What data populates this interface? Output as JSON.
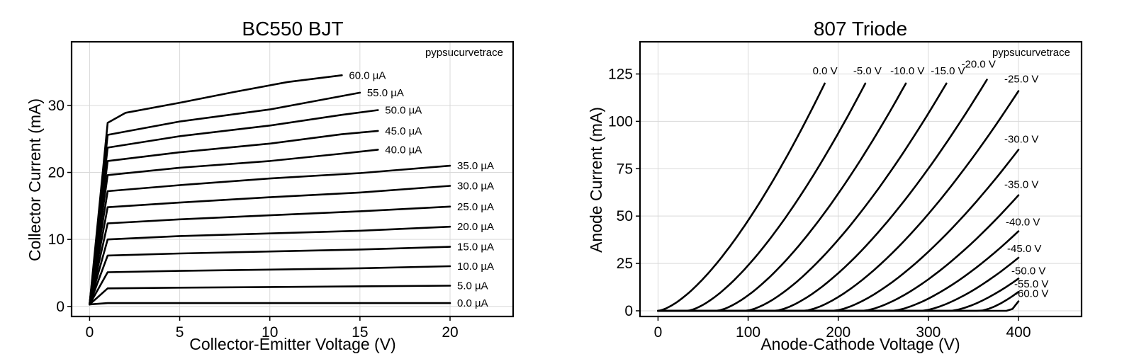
{
  "chart_data": [
    {
      "type": "line",
      "title": "BC550 BJT",
      "xlabel": "Collector-Emitter Voltage (V)",
      "ylabel": "Collector Current (mA)",
      "xlim": [
        -1,
        23.5
      ],
      "ylim": [
        -1.5,
        39.5
      ],
      "xticks": [
        0,
        5,
        10,
        15,
        20
      ],
      "yticks": [
        0,
        10,
        20,
        30
      ],
      "grid": true,
      "watermark": "pypsucurvetrace",
      "series": [
        {
          "name": "0.0 µA",
          "points": [
            [
              0,
              0.3
            ],
            [
              1,
              0.5
            ],
            [
              5,
              0.5
            ],
            [
              10,
              0.5
            ],
            [
              15,
              0.5
            ],
            [
              20,
              0.5
            ]
          ]
        },
        {
          "name": "5.0 µA",
          "points": [
            [
              0,
              0.3
            ],
            [
              1,
              2.7
            ],
            [
              5,
              2.8
            ],
            [
              10,
              2.9
            ],
            [
              15,
              3.0
            ],
            [
              20,
              3.1
            ]
          ]
        },
        {
          "name": "10.0 µA",
          "points": [
            [
              0,
              0.3
            ],
            [
              1,
              5.1
            ],
            [
              5,
              5.3
            ],
            [
              10,
              5.5
            ],
            [
              15,
              5.7
            ],
            [
              20,
              6.0
            ]
          ]
        },
        {
          "name": "15.0 µA",
          "points": [
            [
              0,
              0.3
            ],
            [
              1,
              7.6
            ],
            [
              5,
              7.9
            ],
            [
              10,
              8.2
            ],
            [
              15,
              8.5
            ],
            [
              20,
              8.9
            ]
          ]
        },
        {
          "name": "20.0 µA",
          "points": [
            [
              0,
              0.3
            ],
            [
              1,
              10.0
            ],
            [
              5,
              10.5
            ],
            [
              10,
              10.9
            ],
            [
              15,
              11.3
            ],
            [
              20,
              11.9
            ]
          ]
        },
        {
          "name": "25.0 µA",
          "points": [
            [
              0,
              0.3
            ],
            [
              1,
              12.4
            ],
            [
              5,
              13.0
            ],
            [
              10,
              13.6
            ],
            [
              15,
              14.2
            ],
            [
              20,
              14.9
            ]
          ]
        },
        {
          "name": "30.0 µA",
          "points": [
            [
              0,
              0.3
            ],
            [
              1,
              14.8
            ],
            [
              5,
              15.5
            ],
            [
              10,
              16.3
            ],
            [
              15,
              17.0
            ],
            [
              20,
              18.0
            ]
          ]
        },
        {
          "name": "35.0 µA",
          "points": [
            [
              0,
              0.3
            ],
            [
              1,
              17.2
            ],
            [
              5,
              18.1
            ],
            [
              10,
              19.1
            ],
            [
              15,
              19.9
            ],
            [
              20,
              21.0
            ]
          ]
        },
        {
          "name": "40.0 µA",
          "points": [
            [
              0,
              0.3
            ],
            [
              1,
              19.6
            ],
            [
              5,
              20.7
            ],
            [
              10,
              21.7
            ],
            [
              14,
              22.8
            ],
            [
              16,
              23.4
            ]
          ]
        },
        {
          "name": "45.0 µA",
          "points": [
            [
              0,
              0.3
            ],
            [
              1,
              21.7
            ],
            [
              5,
              23.0
            ],
            [
              10,
              24.3
            ],
            [
              14,
              25.7
            ],
            [
              16,
              26.2
            ]
          ]
        },
        {
          "name": "50.0 µA",
          "points": [
            [
              0,
              0.3
            ],
            [
              1,
              23.7
            ],
            [
              5,
              25.4
            ],
            [
              10,
              27.0
            ],
            [
              14,
              28.6
            ],
            [
              16,
              29.3
            ]
          ]
        },
        {
          "name": "55.0 µA",
          "points": [
            [
              0,
              0.3
            ],
            [
              1,
              25.6
            ],
            [
              5,
              27.6
            ],
            [
              10,
              29.4
            ],
            [
              13,
              30.9
            ],
            [
              15,
              31.9
            ]
          ]
        },
        {
          "name": "60.0 µA",
          "points": [
            [
              0,
              0.3
            ],
            [
              1,
              27.4
            ],
            [
              2,
              28.9
            ],
            [
              5,
              30.4
            ],
            [
              8,
              32.0
            ],
            [
              11,
              33.5
            ],
            [
              14,
              34.5
            ]
          ]
        }
      ]
    },
    {
      "type": "line",
      "title": "807 Triode",
      "xlabel": "Anode-Cathode Voltage (V)",
      "ylabel": "Anode Current (mA)",
      "xlim": [
        -20,
        470
      ],
      "ylim": [
        -3,
        142
      ],
      "xticks": [
        0,
        100,
        200,
        300,
        400
      ],
      "yticks": [
        0,
        25,
        50,
        75,
        100,
        125
      ],
      "grid": true,
      "watermark": "pypsucurvetrace",
      "series": [
        {
          "name": "0.0 V",
          "grid_voltage": 0,
          "endpoint": [
            185,
            120
          ]
        },
        {
          "name": "-5.0 V",
          "grid_voltage": -5,
          "endpoint": [
            230,
            120
          ]
        },
        {
          "name": "-10.0 V",
          "grid_voltage": -10,
          "endpoint": [
            275,
            120
          ]
        },
        {
          "name": "-15.0 V",
          "grid_voltage": -15,
          "endpoint": [
            320,
            120
          ]
        },
        {
          "name": "-20.0 V",
          "grid_voltage": -20,
          "endpoint": [
            365,
            122
          ]
        },
        {
          "name": "-25.0 V",
          "grid_voltage": -25,
          "endpoint": [
            400,
            116
          ]
        },
        {
          "name": "-30.0 V",
          "grid_voltage": -30,
          "endpoint": [
            400,
            85
          ]
        },
        {
          "name": "-35.0 V",
          "grid_voltage": -35,
          "endpoint": [
            400,
            61
          ]
        },
        {
          "name": "-40.0 V",
          "grid_voltage": -40,
          "endpoint": [
            400,
            42
          ]
        },
        {
          "name": "-45.0 V",
          "grid_voltage": -45,
          "endpoint": [
            400,
            28
          ]
        },
        {
          "name": "-50.0 V",
          "grid_voltage": -50,
          "endpoint": [
            400,
            17
          ]
        },
        {
          "name": "-55.0 V",
          "grid_voltage": -55,
          "endpoint": [
            400,
            10
          ]
        },
        {
          "name": "-60.0 V",
          "grid_voltage": -60,
          "endpoint": [
            400,
            5
          ]
        }
      ]
    }
  ]
}
